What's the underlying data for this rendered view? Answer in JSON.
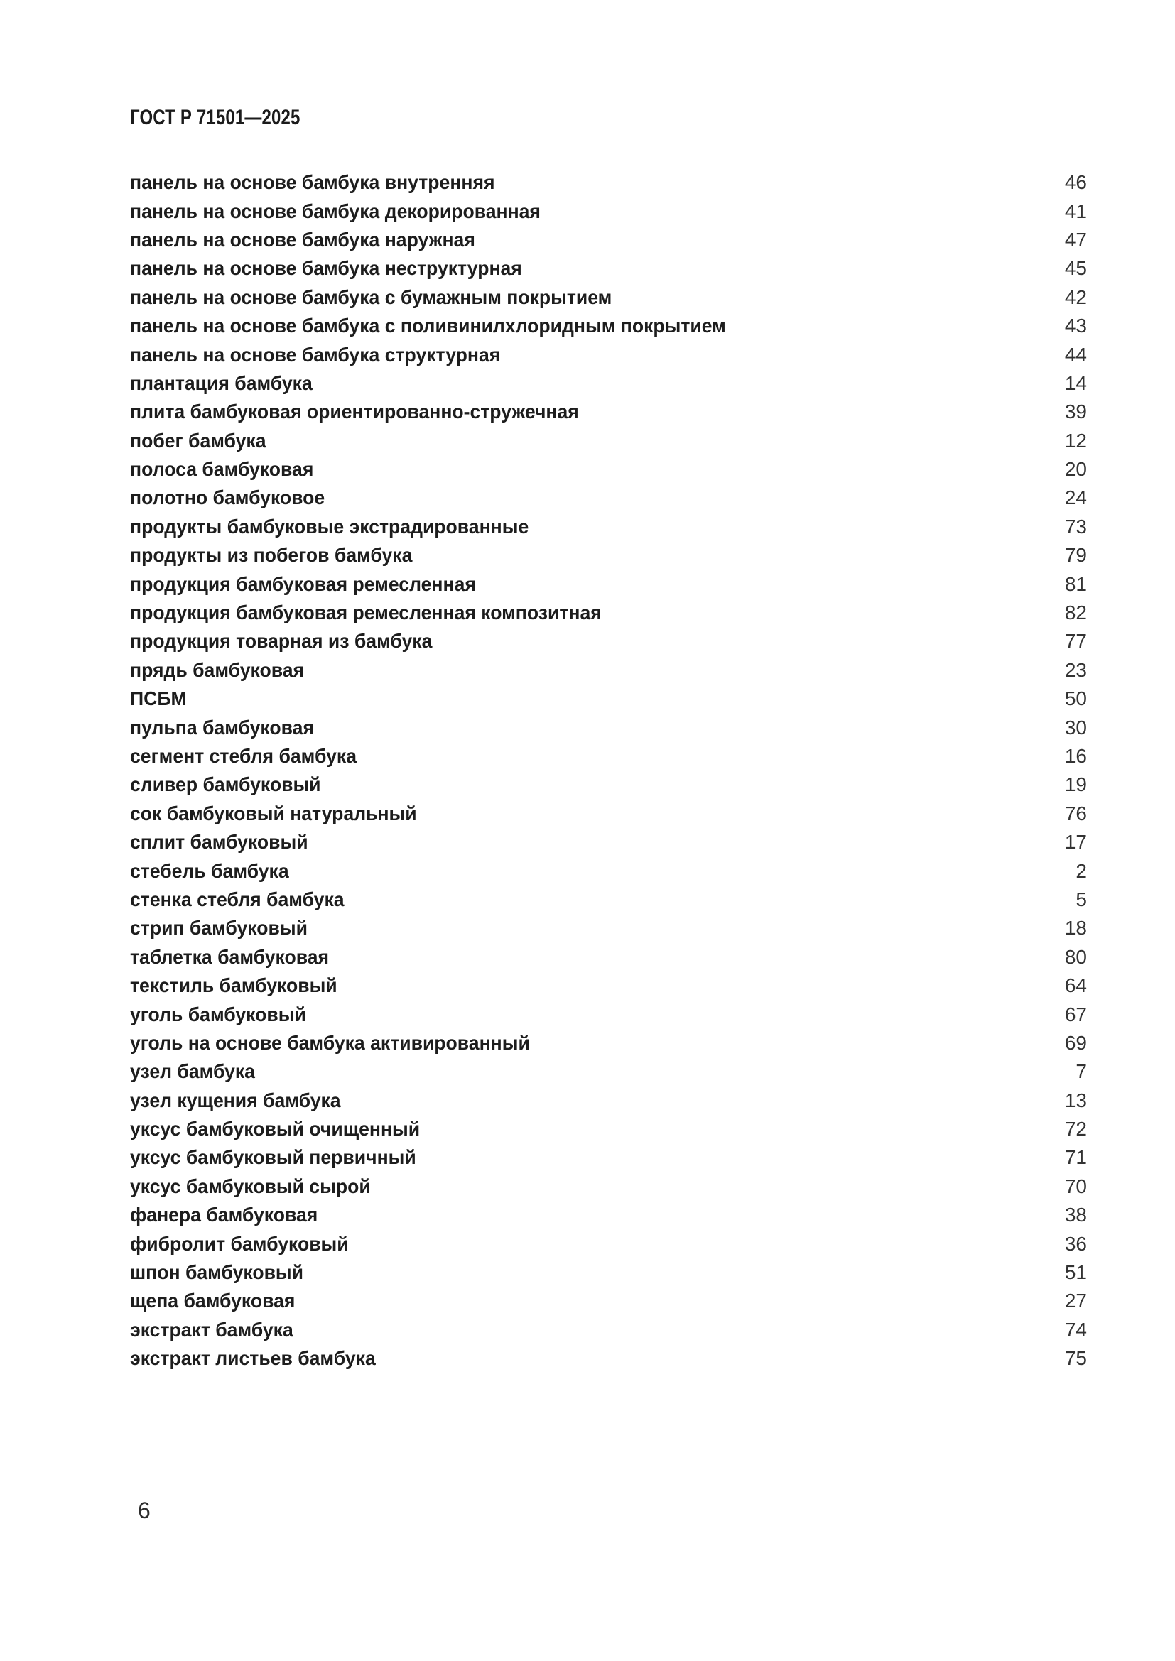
{
  "document": {
    "standard_code": "ГОСТ Р 71501—2025",
    "page_number": "6"
  },
  "index": {
    "entries": [
      {
        "term": "панель на основе бамбука внутренняя",
        "page": "46"
      },
      {
        "term": "панель на основе бамбука декорированная",
        "page": "41"
      },
      {
        "term": "панель на основе бамбука наружная",
        "page": "47"
      },
      {
        "term": "панель на основе бамбука неструктурная",
        "page": "45"
      },
      {
        "term": "панель на основе бамбука с бумажным покрытием",
        "page": "42"
      },
      {
        "term": "панель на основе бамбука с поливинилхлоридным покрытием",
        "page": "43"
      },
      {
        "term": "панель на основе бамбука структурная",
        "page": "44"
      },
      {
        "term": "плантация бамбука",
        "page": "14"
      },
      {
        "term": "плита бамбуковая ориентированно-стружечная",
        "page": "39"
      },
      {
        "term": "побег бамбука",
        "page": "12"
      },
      {
        "term": "полоса бамбуковая",
        "page": "20"
      },
      {
        "term": "полотно бамбуковое",
        "page": "24"
      },
      {
        "term": "продукты бамбуковые экстрадированные",
        "page": "73"
      },
      {
        "term": "продукты из побегов бамбука",
        "page": "79"
      },
      {
        "term": "продукция бамбуковая ремесленная",
        "page": "81"
      },
      {
        "term": "продукция бамбуковая ремесленная композитная",
        "page": "82"
      },
      {
        "term": "продукция товарная из бамбука",
        "page": "77"
      },
      {
        "term": "прядь бамбуковая",
        "page": "23"
      },
      {
        "term": "ПСБМ",
        "page": "50"
      },
      {
        "term": "пульпа бамбуковая",
        "page": "30"
      },
      {
        "term": "сегмент стебля бамбука",
        "page": "16"
      },
      {
        "term": "сливер бамбуковый",
        "page": "19"
      },
      {
        "term": "сок бамбуковый натуральный",
        "page": "76"
      },
      {
        "term": "сплит бамбуковый",
        "page": "17"
      },
      {
        "term": "стебель бамбука",
        "page": "2"
      },
      {
        "term": "стенка стебля бамбука",
        "page": "5"
      },
      {
        "term": "стрип бамбуковый",
        "page": "18"
      },
      {
        "term": "таблетка бамбуковая",
        "page": "80"
      },
      {
        "term": "текстиль бамбуковый",
        "page": "64"
      },
      {
        "term": "уголь бамбуковый",
        "page": "67"
      },
      {
        "term": "уголь на основе бамбука активированный",
        "page": "69"
      },
      {
        "term": "узел бамбука",
        "page": "7"
      },
      {
        "term": "узел кущения бамбука",
        "page": "13"
      },
      {
        "term": "уксус бамбуковый очищенный",
        "page": "72"
      },
      {
        "term": "уксус бамбуковый первичный",
        "page": "71"
      },
      {
        "term": "уксус бамбуковый сырой",
        "page": "70"
      },
      {
        "term": "фанера бамбуковая",
        "page": "38"
      },
      {
        "term": "фибролит бамбуковый",
        "page": "36"
      },
      {
        "term": "шпон бамбуковый",
        "page": "51"
      },
      {
        "term": "щепа бамбуковая",
        "page": "27"
      },
      {
        "term": "экстракт бамбука",
        "page": "74"
      },
      {
        "term": "экстракт листьев бамбука",
        "page": "75"
      }
    ]
  }
}
